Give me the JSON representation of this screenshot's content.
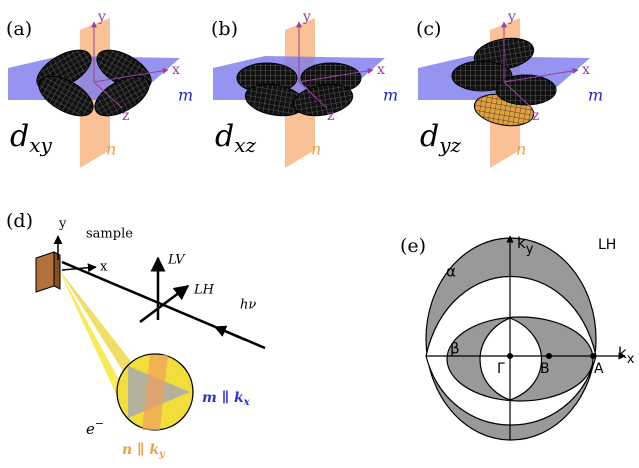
{
  "panels": [
    {
      "label": "(a)",
      "axes": {
        "y": "y",
        "x": "x",
        "z": "z",
        "m": "m",
        "n": "n"
      },
      "orbital": {
        "main": "d",
        "sub": "xy"
      }
    },
    {
      "label": "(b)",
      "axes": {
        "y": "y",
        "x": "x",
        "z": "z",
        "m": "m",
        "n": "n"
      },
      "orbital": {
        "main": "d",
        "sub": "xz"
      }
    },
    {
      "label": "(c)",
      "axes": {
        "y": "y",
        "x": "x",
        "z": "z",
        "m": "m",
        "n": "n"
      },
      "orbital": {
        "main": "d",
        "sub": "yz"
      }
    }
  ],
  "setup": {
    "label": "(d)",
    "y": "y",
    "x": "x",
    "sample": "sample",
    "lv": "LV",
    "lh": "LH",
    "photon": "hν",
    "electron": {
      "main": "e",
      "sup": "−"
    },
    "m_plane": {
      "main": "m ∥ k",
      "sub": "x"
    },
    "n_plane": {
      "main": "n ∥ k",
      "sub": "y"
    }
  },
  "fermi": {
    "label": "(e)",
    "ky": {
      "main": "k",
      "sub": "y"
    },
    "kx": {
      "main": "k",
      "sub": "x"
    },
    "pol": "LH",
    "alpha": "α",
    "beta": "β",
    "gamma": "Γ",
    "b": "B",
    "a": "A"
  }
}
